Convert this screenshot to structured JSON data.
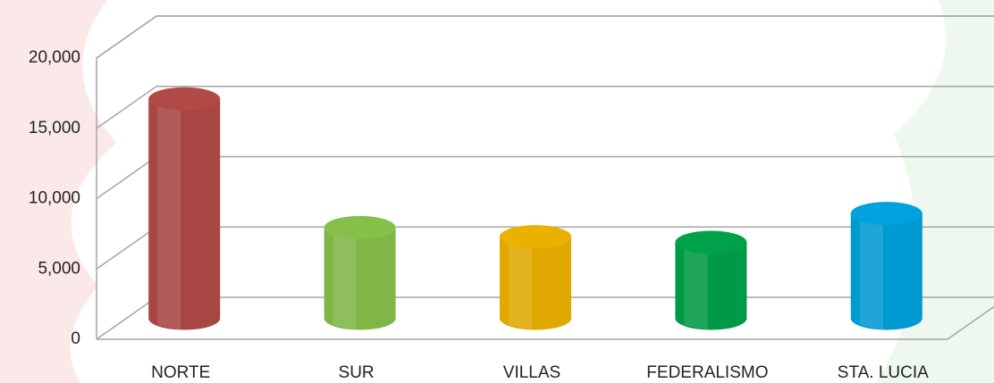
{
  "chart_data": {
    "type": "bar3d",
    "categories": [
      "NORTE",
      "SUR",
      "VILLAS",
      "FEDERALISMO",
      "STA. LUCIA"
    ],
    "series": [
      {
        "values": [
          15600,
          6450,
          5800,
          5400,
          7450
        ],
        "colors": [
          "#c0504d",
          "#92d050",
          "#ffc000",
          "#00b050",
          "#00b0f0"
        ]
      }
    ],
    "ylim": [
      0,
      20000
    ],
    "yticks": [
      0,
      {
        "value": 5000,
        "label": "5,000"
      },
      {
        "value": 10000,
        "label": "10,000"
      },
      {
        "value": 15000,
        "label": "15,000"
      },
      {
        "value": 20000,
        "label": "20,000"
      }
    ],
    "grid": true
  }
}
